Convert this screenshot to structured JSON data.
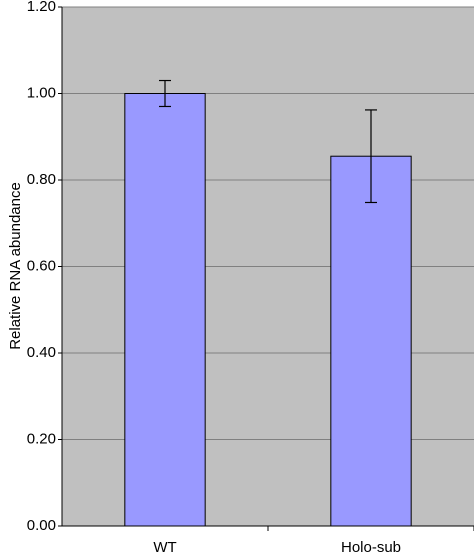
{
  "chart_data": {
    "type": "bar",
    "y_label": "Relative RNA abundance",
    "categories": [
      "WT",
      "Holo-sub"
    ],
    "values": [
      1.0,
      0.855
    ],
    "errors": [
      0.03,
      0.107
    ],
    "color": "#9999ff",
    "plot_background": "#c0c0c0",
    "ylim": [
      0,
      1.2
    ],
    "yticks": [
      {
        "value": 0,
        "label": "0.00"
      },
      {
        "value": 0.2,
        "label": "0.20"
      },
      {
        "value": 0.4,
        "label": "0.40"
      },
      {
        "value": 0.6,
        "label": "0.60"
      },
      {
        "value": 0.8,
        "label": "0.80"
      },
      {
        "value": 1.0,
        "label": "1.00"
      },
      {
        "value": 1.2,
        "label": "1.20"
      }
    ],
    "grid": true
  }
}
